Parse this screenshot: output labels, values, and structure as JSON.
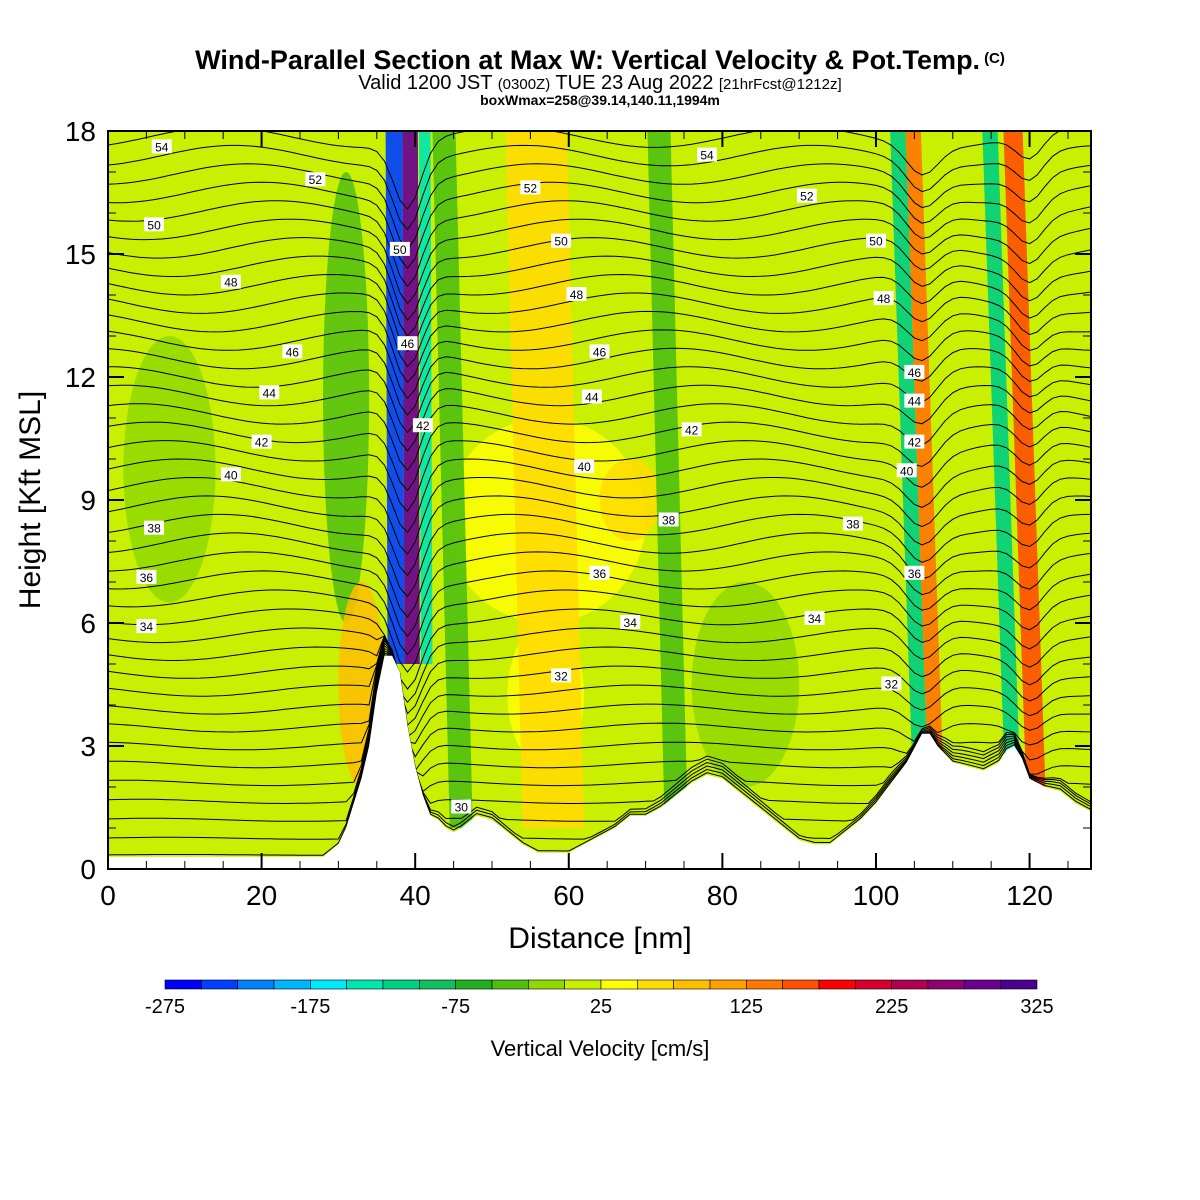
{
  "header": {
    "title": "Wind-Parallel Section at Max W: Vertical Velocity & Pot.Temp.",
    "title_suffix": "(C)",
    "subtitle_a": "Valid 1200 JST",
    "subtitle_b": "(0300Z)",
    "subtitle_c": "TUE 23 Aug 2022",
    "subtitle_d": "[21hrFcst@1212z]",
    "box_info": "boxWmax=258@39.14,140.11,1994m"
  },
  "chart_data": {
    "type": "heatmap",
    "title": "Wind-Parallel Section at Max W: Vertical Velocity & Pot.Temp.",
    "xlabel": "Distance [nm]",
    "ylabel": "Height [Kft MSL]",
    "xlim": [
      0,
      128
    ],
    "ylim": [
      0,
      18
    ],
    "x_ticks": [
      "0",
      "20",
      "40",
      "60",
      "80",
      "100",
      "120"
    ],
    "y_ticks": [
      "0",
      "3",
      "6",
      "9",
      "12",
      "15",
      "18"
    ],
    "colorbar": {
      "title": "Vertical Velocity [cm/s]",
      "tick_labels": [
        "-275",
        "-175",
        "-75",
        "25",
        "125",
        "225",
        "325"
      ],
      "bounds": [
        -275,
        325
      ],
      "step": 25,
      "colors": [
        "#0000ff",
        "#0040ff",
        "#0080ff",
        "#00b4ff",
        "#00eaff",
        "#00e6b0",
        "#00d080",
        "#10c060",
        "#20b020",
        "#50c010",
        "#90d800",
        "#c8f000",
        "#ffff00",
        "#ffdc00",
        "#ffbe00",
        "#ffa000",
        "#ff7800",
        "#ff5000",
        "#ff0000",
        "#d80028",
        "#b00050",
        "#900070",
        "#6a0090",
        "#4a0090"
      ]
    },
    "series": [
      {
        "kind": "vertical_velocity_bands",
        "bands": [
          {
            "x": 37.5,
            "width": 2.2,
            "value": -250
          },
          {
            "x": 39.6,
            "width": 2.0,
            "value": 275
          },
          {
            "x": 41.5,
            "width": 1.5,
            "value": -150
          },
          {
            "x": 46,
            "width": 3,
            "value": -50
          },
          {
            "x": 58,
            "width": 8,
            "value": 50
          },
          {
            "x": 74,
            "width": 3,
            "value": -50
          },
          {
            "x": 106,
            "width": 2,
            "value": -125
          },
          {
            "x": 108,
            "width": 2,
            "value": 125
          },
          {
            "x": 118,
            "width": 2,
            "value": -125
          },
          {
            "x": 121,
            "width": 2.5,
            "value": 150
          }
        ]
      },
      {
        "kind": "potential_temperature_contours",
        "labels": [
          "54",
          "52",
          "50",
          "48",
          "46",
          "44",
          "42",
          "40",
          "38",
          "36",
          "34",
          "32",
          "30"
        ]
      }
    ],
    "terrain": {
      "x": [
        0,
        2,
        4,
        6,
        8,
        10,
        12,
        14,
        16,
        18,
        20,
        22,
        24,
        26,
        28,
        30,
        31,
        32,
        33,
        34,
        35,
        36,
        37,
        38,
        39,
        40,
        41,
        42,
        43,
        44,
        45,
        46,
        48,
        50,
        52,
        54,
        56,
        58,
        60,
        62,
        64,
        66,
        68,
        70,
        72,
        74,
        76,
        78,
        80,
        82,
        84,
        86,
        88,
        90,
        92,
        94,
        96,
        98,
        100,
        102,
        104,
        106,
        107,
        108,
        110,
        112,
        114,
        116,
        117,
        118,
        119,
        120,
        122,
        124,
        126,
        128
      ],
      "y": [
        0.3,
        0.3,
        0.3,
        0.3,
        0.3,
        0.3,
        0.3,
        0.3,
        0.3,
        0.3,
        0.3,
        0.3,
        0.3,
        0.3,
        0.3,
        0.6,
        1.0,
        1.6,
        2.2,
        3.0,
        4.3,
        5.2,
        5.2,
        4.8,
        3.5,
        2.5,
        1.8,
        1.3,
        1.2,
        1.0,
        0.9,
        1.0,
        1.3,
        1.2,
        0.9,
        0.6,
        0.4,
        0.4,
        0.4,
        0.6,
        0.8,
        1.0,
        1.3,
        1.3,
        1.5,
        1.8,
        2.1,
        2.3,
        2.2,
        1.9,
        1.6,
        1.3,
        1.0,
        0.7,
        0.6,
        0.6,
        0.9,
        1.2,
        1.6,
        2.1,
        2.6,
        3.3,
        3.3,
        3.0,
        2.6,
        2.5,
        2.4,
        2.6,
        2.9,
        3.0,
        2.7,
        2.2,
        2.0,
        1.9,
        1.6,
        1.4
      ]
    }
  }
}
